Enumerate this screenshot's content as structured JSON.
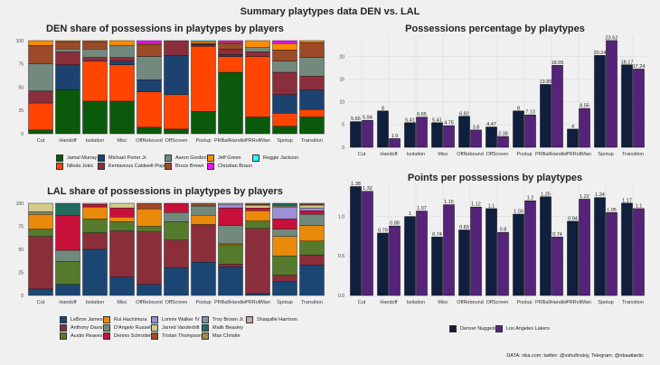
{
  "title": "Summary playtypes data DEN vs. LAL",
  "caption": "DATA: nba.com; twitter: @vshufinskiy, Telegram: @nbaatlantic",
  "chart_data": [
    {
      "id": "den-share",
      "type": "bar",
      "stacked": true,
      "title": "DEN share of possessions in playtypes by players",
      "xlabel": "",
      "ylabel": "",
      "ylim": [
        0,
        100
      ],
      "yticks": [
        "0",
        "25",
        "50",
        "75",
        "100"
      ],
      "grid": true,
      "legend_position": "bottom",
      "categories": [
        "Cut",
        "Handoff",
        "Isolation",
        "Misc",
        "OffRebound",
        "OffScreen",
        "Postup",
        "PRBallHandler",
        "PRRollMan",
        "Spotup",
        "Transition"
      ],
      "series": [
        {
          "name": "Jamal Murray",
          "color": "#0b5a0b",
          "values": [
            4,
            47,
            35,
            35,
            7,
            5,
            24,
            66,
            18,
            8,
            18
          ]
        },
        {
          "name": "Nikola Jokic",
          "color": "#ff4500",
          "values": [
            29,
            0,
            43,
            39,
            38,
            37,
            70,
            17,
            65,
            14,
            8
          ]
        },
        {
          "name": "Michael Porter Jr.",
          "color": "#1c4270",
          "values": [
            0,
            27,
            0,
            4,
            13,
            42,
            2,
            2,
            0,
            20,
            21
          ]
        },
        {
          "name": "Kentavious Caldwell-Pope",
          "color": "#8b2e3c",
          "values": [
            13,
            14,
            4,
            4,
            0,
            16,
            1,
            6,
            5,
            24,
            15
          ]
        },
        {
          "name": "Aaron Gordon",
          "color": "#728a7e",
          "values": [
            29,
            3,
            9,
            13,
            25,
            0,
            0,
            0,
            5,
            12,
            20
          ]
        },
        {
          "name": "Bruce Brown",
          "color": "#9c4a28",
          "values": [
            20,
            8,
            8,
            0,
            13,
            0,
            0,
            6,
            0,
            12,
            16
          ]
        },
        {
          "name": "Jeff Green",
          "color": "#ff8c00",
          "values": [
            5,
            1,
            1,
            5,
            1,
            0,
            2,
            1,
            7,
            7,
            2
          ]
        },
        {
          "name": "Christian Braun",
          "color": "#ee11ee",
          "values": [
            0,
            0,
            0,
            0,
            3,
            0,
            0,
            2,
            0,
            3,
            0
          ]
        },
        {
          "name": "Reggie Jackson",
          "color": "#22ffff",
          "values": [
            0,
            0,
            0,
            0,
            0,
            0,
            1,
            0,
            0,
            0,
            0
          ]
        }
      ]
    },
    {
      "id": "lal-share",
      "type": "bar",
      "stacked": true,
      "title": "LAL share of possessions in playtypes by players",
      "xlabel": "",
      "ylabel": "",
      "ylim": [
        0,
        100
      ],
      "yticks": [
        "0",
        "25",
        "50",
        "75",
        "100"
      ],
      "grid": true,
      "legend_position": "bottom",
      "categories": [
        "Cut",
        "Handoff",
        "Isolation",
        "Misc",
        "OffRebound",
        "OffScreen",
        "Postup",
        "PRBallHandler",
        "PRRollMan",
        "Spotup",
        "Transition"
      ],
      "series": [
        {
          "name": "LeBron James",
          "color": "#1b4673",
          "values": [
            7,
            12,
            50,
            20,
            12,
            30,
            36,
            31,
            2,
            15,
            33
          ]
        },
        {
          "name": "Anthony Davis",
          "color": "#8b2e3c",
          "values": [
            57,
            0,
            18,
            50,
            57,
            30,
            41,
            3,
            70,
            7,
            11
          ]
        },
        {
          "name": "Austin Reaves",
          "color": "#567a2c",
          "values": [
            8,
            25,
            15,
            10,
            6,
            20,
            0,
            21,
            8,
            21,
            15
          ]
        },
        {
          "name": "Rui Hachimura",
          "color": "#ea8a0a",
          "values": [
            16,
            0,
            13,
            5,
            19,
            0,
            10,
            1,
            11,
            21,
            17
          ]
        },
        {
          "name": "D'Angelo Russell",
          "color": "#728a7e",
          "values": [
            3,
            12,
            0,
            0,
            0,
            10,
            10,
            20,
            0,
            8,
            12
          ]
        },
        {
          "name": "Dennis Schroder",
          "color": "#c8103a",
          "values": [
            0,
            38,
            3,
            10,
            0,
            10,
            0,
            19,
            3,
            11,
            4
          ]
        },
        {
          "name": "Lonnie Walker IV",
          "color": "#9b8fd6",
          "values": [
            0,
            0,
            0,
            0,
            0,
            0,
            0,
            4,
            0,
            13,
            3
          ]
        },
        {
          "name": "Jarred Vanderbilt",
          "color": "#d2cb8a",
          "values": [
            9,
            0,
            1,
            5,
            0,
            0,
            0,
            1,
            3,
            1,
            3
          ]
        },
        {
          "name": "Tristan Thompson",
          "color": "#9c4a28",
          "values": [
            0,
            0,
            0,
            0,
            6,
            0,
            3,
            0,
            1,
            0,
            1
          ]
        },
        {
          "name": "Troy Brown Jr.",
          "color": "#7c93ae",
          "values": [
            0,
            0,
            0,
            0,
            0,
            0,
            0,
            0,
            0,
            0,
            0
          ]
        },
        {
          "name": "Malik Beasley",
          "color": "#236a5f",
          "values": [
            0,
            13,
            0,
            0,
            0,
            0,
            0,
            0,
            0,
            3,
            0
          ]
        },
        {
          "name": "Max Christie",
          "color": "#a08c45",
          "values": [
            0,
            0,
            0,
            0,
            0,
            0,
            0,
            0,
            1,
            0,
            1
          ]
        },
        {
          "name": "Shaquille Harrison",
          "color": "#c9a8a3",
          "values": [
            0,
            0,
            0,
            0,
            0,
            0,
            0,
            0,
            0,
            0,
            0
          ]
        }
      ]
    },
    {
      "id": "poss-pct",
      "type": "bar",
      "title": "Possessions percentage by playtypes",
      "xlabel": "",
      "ylabel": "",
      "ylim": [
        0,
        24.5
      ],
      "yticks": [
        "0",
        "5",
        "10",
        "15",
        "20"
      ],
      "grid": true,
      "legend_position": "bottom",
      "categories": [
        "Cut",
        "Handoff",
        "Isolation",
        "Misc",
        "OffRebound",
        "OffScreen",
        "Postup",
        "PRBallHandler",
        "PRRollMan",
        "Spotup",
        "Transition"
      ],
      "series": [
        {
          "name": "Denver Nuggets",
          "color": "#0f1f3d",
          "values": [
            5.65,
            8,
            5.41,
            5.41,
            6.82,
            4.47,
            8,
            13.85,
            4,
            20.24,
            18.17
          ],
          "labels": [
            "5.65",
            "8",
            "5.41",
            "5.41",
            "6.82",
            "4.47",
            "8",
            "13.85",
            "4",
            "20.24",
            "18.17"
          ]
        },
        {
          "name": "Los Angeles Lakers",
          "color": "#55237a",
          "values": [
            5.94,
            1.9,
            6.65,
            4.75,
            3.8,
            2.38,
            7.13,
            18.05,
            8.55,
            23.52,
            17.24
          ],
          "labels": [
            "5.94",
            "1.9",
            "6.65",
            "4.75",
            "3.8",
            "2.38",
            "7.13",
            "18.05",
            "8.55",
            "23.52",
            "17.24"
          ]
        }
      ]
    },
    {
      "id": "ppp",
      "type": "bar",
      "title": "Points per possessions by playtypes",
      "xlabel": "",
      "ylabel": "",
      "ylim": [
        0,
        1.42
      ],
      "yticks": [
        "0.0",
        "0.5",
        "1.0"
      ],
      "grid": true,
      "legend_position": "bottom",
      "categories": [
        "Cut",
        "Handoff",
        "Isolation",
        "Misc",
        "OffRebound",
        "OffScreen",
        "Postup",
        "PRBallHandler",
        "PRRollMan",
        "Spotup",
        "Transition"
      ],
      "series": [
        {
          "name": "Denver Nuggets",
          "color": "#0f1f3d",
          "values": [
            1.38,
            0.79,
            1,
            0.74,
            0.83,
            1.1,
            1.03,
            1.25,
            0.94,
            1.24,
            1.17
          ],
          "labels": [
            "1.38",
            "0.79",
            "1",
            "0.74",
            "0.83",
            "1.1",
            "1.03",
            "1.25",
            "0.94",
            "1.24",
            "1.17"
          ]
        },
        {
          "name": "Los Angeles Lakers",
          "color": "#55237a",
          "values": [
            1.32,
            0.88,
            1.07,
            1.15,
            1.12,
            0.8,
            1.2,
            0.74,
            1.22,
            1.05,
            1.1
          ],
          "labels": [
            "1.32",
            "0.88",
            "1.07",
            "1.15",
            "1.12",
            "0.8",
            "1.2",
            "0.74",
            "1.22",
            "1.05",
            "1.1"
          ]
        }
      ]
    }
  ],
  "teams_legend": [
    {
      "name": "Denver Nuggets",
      "color": "#0f1f3d"
    },
    {
      "name": "Los Angeles Lakers",
      "color": "#55237a"
    }
  ]
}
